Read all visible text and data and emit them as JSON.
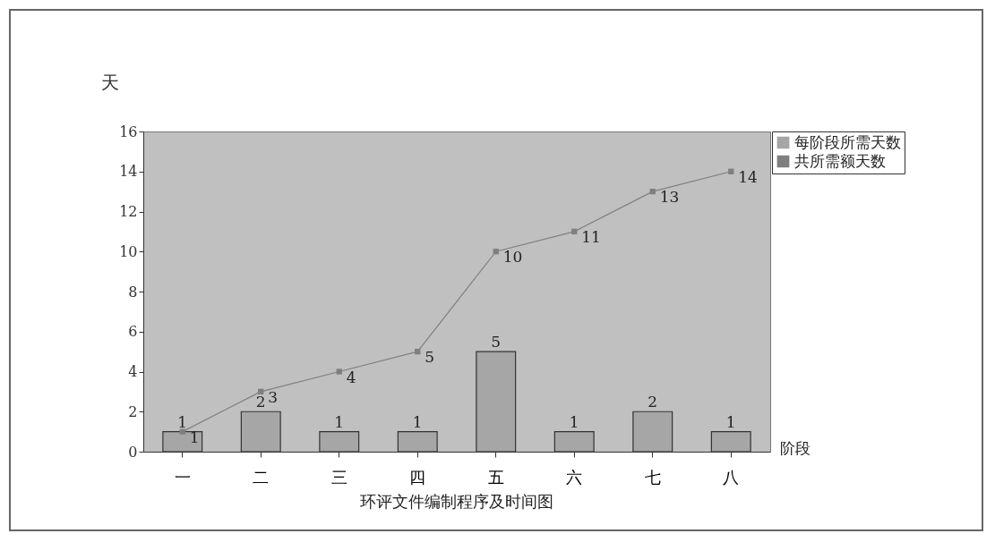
{
  "chart_data": {
    "type": "bar",
    "title": "环评文件编制程序及时间图",
    "xlabel": "阶段",
    "ylabel": "天",
    "categories": [
      "一",
      "二",
      "三",
      "四",
      "五",
      "六",
      "七",
      "八"
    ],
    "series": [
      {
        "name": "每阶段所需天数",
        "color": "#a6a6a6",
        "values": [
          1,
          2,
          1,
          1,
          5,
          1,
          2,
          1
        ]
      },
      {
        "name": "共所需额天数",
        "type": "line",
        "color": "#7f7f7f",
        "values": [
          1,
          3,
          4,
          5,
          10,
          11,
          13,
          14
        ]
      }
    ],
    "ylim": [
      0,
      16
    ],
    "yticks": [
      0,
      2,
      4,
      6,
      8,
      10,
      12,
      14,
      16
    ],
    "grid": false,
    "legend": "right",
    "marker": "square",
    "data_labels": true
  }
}
